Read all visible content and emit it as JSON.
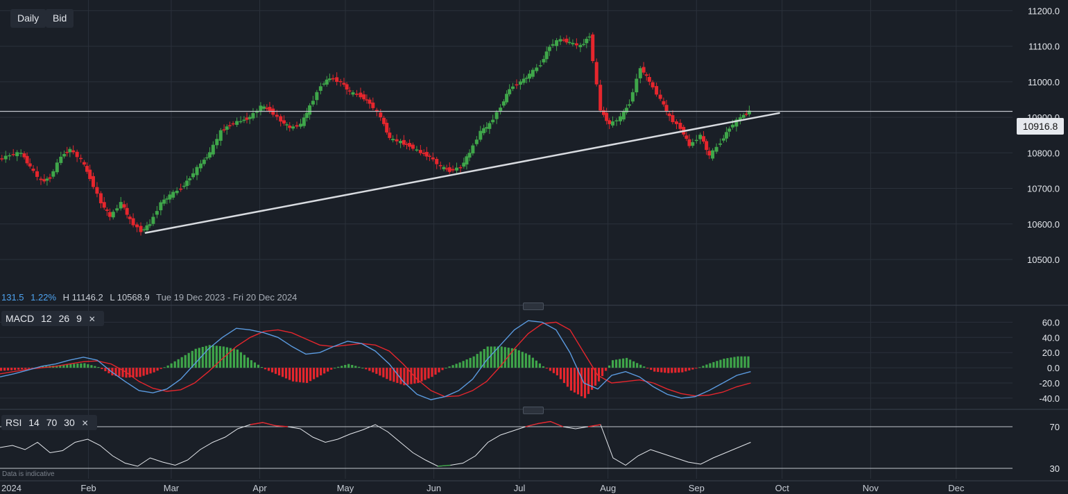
{
  "toolbar": {
    "period": "Daily",
    "price_type": "Bid"
  },
  "stats": {
    "change": "131.5",
    "change_pct": "1.22%",
    "high": "H 11146.2",
    "low": "L 10568.9",
    "range": "Tue 19 Dec 2023 - Fri 20 Dec 2024"
  },
  "last_price": "10916.8",
  "macd_label": {
    "name": "MACD",
    "fast": "12",
    "slow": "26",
    "signal": "9"
  },
  "rsi_label": {
    "name": "RSI",
    "period": "14",
    "upper": "70",
    "lower": "30"
  },
  "footer_note": "Data is indicative",
  "colors": {
    "background": "#1a1f27",
    "up": "#3fa64a",
    "down": "#e5262d",
    "macd": "#5b9be0",
    "signal": "#e5262d",
    "rsi": "#e6e9ee",
    "trendline": "#d8dbe0",
    "grid": "#2b313b",
    "accent": "#4ea3f0"
  },
  "chart_data": [
    {
      "type": "candlestick",
      "title": "",
      "x_range": [
        "2024-01-01",
        "2024-12-20"
      ],
      "x_ticks": [
        "2024",
        "Feb",
        "Mar",
        "Apr",
        "May",
        "Jun",
        "Jul",
        "Aug",
        "Sep",
        "Oct",
        "Nov",
        "Dec"
      ],
      "ylim": [
        10420,
        11230
      ],
      "y_ticks": [
        "10500.0",
        "10600.0",
        "10700.0",
        "10800.0",
        "10900.0",
        "11000.0",
        "11100.0",
        "11200.0"
      ],
      "y_tick_values": [
        10500,
        10600,
        10700,
        10800,
        10900,
        11000,
        11100,
        11200
      ],
      "close_series": {
        "dates": [
          "2024-01-01",
          "2024-01-05",
          "2024-01-09",
          "2024-01-12",
          "2024-01-16",
          "2024-01-19",
          "2024-01-23",
          "2024-01-26",
          "2024-01-30",
          "2024-02-02",
          "2024-02-06",
          "2024-02-09",
          "2024-02-13",
          "2024-02-16",
          "2024-02-20",
          "2024-02-23",
          "2024-02-27",
          "2024-03-01",
          "2024-03-05",
          "2024-03-08",
          "2024-03-12",
          "2024-03-15",
          "2024-03-19",
          "2024-03-22",
          "2024-03-26",
          "2024-03-29",
          "2024-04-02",
          "2024-04-05",
          "2024-04-09",
          "2024-04-12",
          "2024-04-16",
          "2024-04-19",
          "2024-04-23",
          "2024-04-26",
          "2024-04-30",
          "2024-05-03",
          "2024-05-07",
          "2024-05-10",
          "2024-05-14",
          "2024-05-17",
          "2024-05-21",
          "2024-05-24",
          "2024-05-28",
          "2024-05-31",
          "2024-06-04",
          "2024-06-07",
          "2024-06-11",
          "2024-06-14",
          "2024-06-18",
          "2024-06-21",
          "2024-06-25",
          "2024-06-28",
          "2024-07-02",
          "2024-07-05",
          "2024-07-09",
          "2024-07-12",
          "2024-07-16",
          "2024-07-19",
          "2024-07-23",
          "2024-07-26",
          "2024-07-30",
          "2024-08-02",
          "2024-08-06",
          "2024-08-09",
          "2024-08-13",
          "2024-08-16",
          "2024-08-20",
          "2024-08-23",
          "2024-08-27",
          "2024-08-30",
          "2024-09-03",
          "2024-09-06",
          "2024-09-10",
          "2024-09-13",
          "2024-09-17",
          "2024-09-20"
        ],
        "close": [
          10780,
          10795,
          10800,
          10760,
          10720,
          10730,
          10790,
          10810,
          10780,
          10730,
          10660,
          10620,
          10660,
          10610,
          10580,
          10600,
          10660,
          10680,
          10700,
          10730,
          10770,
          10800,
          10860,
          10880,
          10890,
          10900,
          10930,
          10920,
          10890,
          10870,
          10880,
          10930,
          10990,
          11010,
          11000,
          10970,
          10960,
          10940,
          10900,
          10840,
          10830,
          10820,
          10800,
          10790,
          10760,
          10750,
          10760,
          10800,
          10860,
          10880,
          10930,
          10980,
          11000,
          11020,
          11050,
          11100,
          11120,
          11110,
          11100,
          11130,
          10920,
          10880,
          10900,
          10940,
          11040,
          11000,
          10950,
          10900,
          10870,
          10820,
          10850,
          10790,
          10830,
          10870,
          10900,
          10917
        ]
      }
    },
    {
      "type": "line",
      "name": "MACD",
      "ylim": [
        -52,
        75
      ],
      "y_ticks": [
        "60.0",
        "40.0",
        "20.0",
        "0.0",
        "-20.0",
        "-40.0"
      ],
      "y_tick_values": [
        60,
        40,
        20,
        0,
        -20,
        -40
      ],
      "series": [
        {
          "name": "MACD",
          "values": [
            -12,
            -8,
            -3,
            2,
            5,
            10,
            14,
            10,
            -5,
            -18,
            -30,
            -33,
            -28,
            -15,
            5,
            25,
            40,
            52,
            50,
            46,
            40,
            28,
            18,
            20,
            28,
            35,
            32,
            22,
            5,
            -18,
            -35,
            -42,
            -38,
            -30,
            -15,
            10,
            30,
            50,
            62,
            60,
            50,
            20,
            -20,
            -28,
            -10,
            -5,
            -12,
            -25,
            -35,
            -40,
            -38,
            -30,
            -20,
            -10,
            -5
          ]
        },
        {
          "name": "Signal",
          "values": [
            -8,
            -5,
            -2,
            0,
            2,
            5,
            8,
            9,
            5,
            -5,
            -18,
            -27,
            -31,
            -29,
            -20,
            -5,
            12,
            28,
            40,
            48,
            50,
            46,
            38,
            30,
            28,
            30,
            32,
            30,
            22,
            5,
            -15,
            -30,
            -38,
            -37,
            -30,
            -18,
            2,
            25,
            45,
            58,
            60,
            50,
            20,
            -10,
            -20,
            -18,
            -16,
            -20,
            -28,
            -34,
            -37,
            -36,
            -32,
            -25,
            -20
          ]
        }
      ]
    },
    {
      "type": "line",
      "name": "RSI",
      "ylim": [
        20,
        80
      ],
      "y_ticks": [
        "70",
        "30"
      ],
      "y_tick_values": [
        70,
        30
      ],
      "series": [
        {
          "name": "RSI",
          "values": [
            50,
            52,
            48,
            55,
            45,
            47,
            55,
            58,
            52,
            42,
            35,
            32,
            40,
            36,
            33,
            38,
            48,
            55,
            60,
            68,
            72,
            74,
            71,
            70,
            68,
            60,
            55,
            58,
            63,
            67,
            72,
            65,
            55,
            45,
            38,
            32,
            33,
            35,
            42,
            55,
            62,
            66,
            70,
            73,
            75,
            70,
            68,
            70,
            72,
            40,
            33,
            42,
            48,
            44,
            40,
            36,
            34,
            40,
            45,
            50,
            55
          ]
        }
      ]
    }
  ]
}
